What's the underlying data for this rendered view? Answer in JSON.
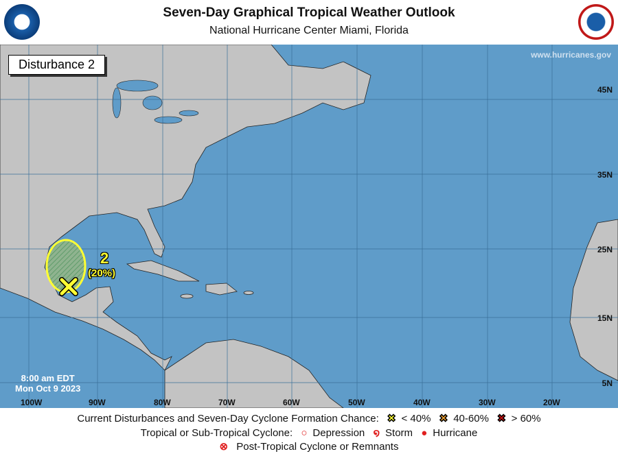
{
  "header": {
    "title": "Seven-Day Graphical Tropical Weather Outlook",
    "subtitle": "National Hurricane Center  Miami, Florida",
    "left_logo": "noaa-logo",
    "right_logo": "nws-logo"
  },
  "map": {
    "panel_label": "Disturbance 2",
    "website": "www.hurricanes.gov",
    "lat_labels": [
      "45N",
      "35N",
      "25N",
      "15N",
      "5N"
    ],
    "lon_labels": [
      "100W",
      "90W",
      "80W",
      "70W",
      "60W",
      "50W",
      "40W",
      "30W",
      "20W"
    ],
    "timestamp": {
      "time": "8:00 am EDT",
      "date": "Mon Oct 9 2023"
    },
    "disturbance": {
      "id": "2",
      "chance": "(20%)",
      "category": "< 40%",
      "color": "#ffff33"
    },
    "colors": {
      "ocean": "#5f9cc9",
      "land": "#c3c3c3"
    }
  },
  "legend": {
    "row1_label": "Current Disturbances and Seven-Day Cyclone Formation Chance:",
    "low": "< 40%",
    "mid": "40-60%",
    "high": "> 60%",
    "row2_label": "Tropical or Sub-Tropical Cyclone:",
    "depression": "Depression",
    "storm": "Storm",
    "hurricane": "Hurricane",
    "post": "Post-Tropical Cyclone or Remnants",
    "colors": {
      "low": "#ffff33",
      "mid": "#f0a030",
      "high": "#cc1111",
      "cyclone": "#e02020"
    }
  }
}
